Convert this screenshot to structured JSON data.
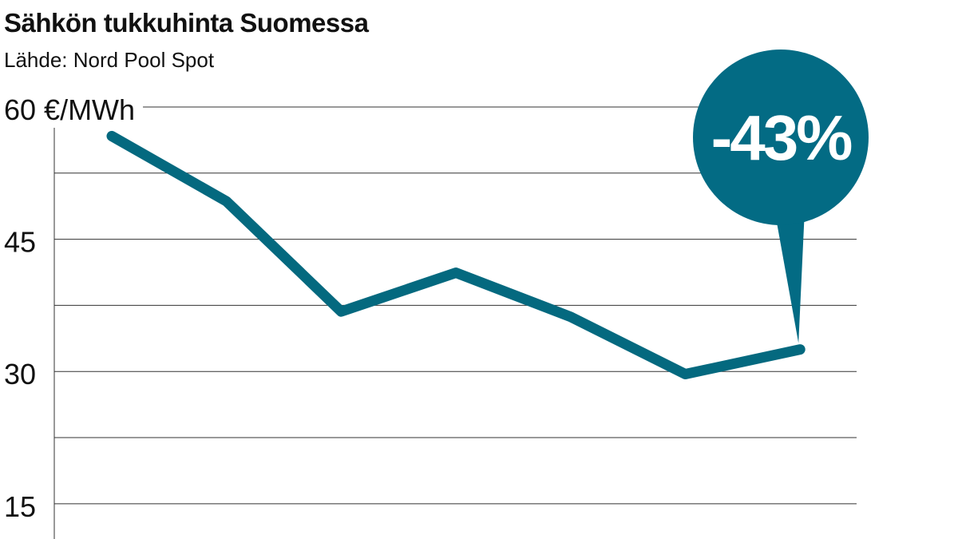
{
  "chart_data": {
    "type": "line",
    "title": "Sähkön tukkuhinta Suomessa",
    "subtitle": "Lähde: Nord Pool Spot",
    "annotation": "-43%",
    "categories": [
      null,
      null,
      null,
      null,
      null,
      null,
      null
    ],
    "values": [
      56.7,
      49.3,
      36.8,
      41.2,
      36.2,
      29.7,
      32.5
    ],
    "color": "#04697f",
    "annotation_color": "#036b84",
    "ylim": [
      11,
      60
    ],
    "yticks": [
      {
        "value": 60,
        "label": "60 €/MWh"
      },
      45,
      30,
      15
    ],
    "minor_yticks": [
      52.5,
      37.5,
      22.5
    ],
    "grid": true
  }
}
